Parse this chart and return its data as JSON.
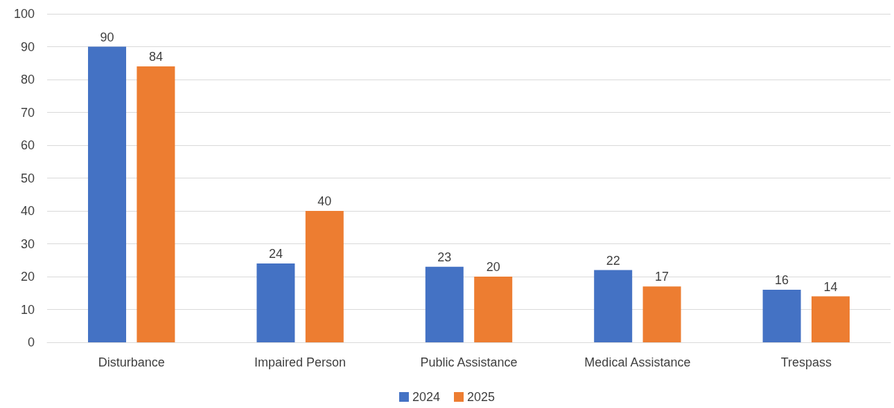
{
  "chart_data": {
    "type": "bar",
    "categories": [
      "Disturbance",
      "Impaired Person",
      "Public Assistance",
      "Medical Assistance",
      "Trespass"
    ],
    "series": [
      {
        "name": "2024",
        "color": "#4472c4",
        "values": [
          90,
          24,
          23,
          22,
          16
        ]
      },
      {
        "name": "2025",
        "color": "#ed7d31",
        "values": [
          84,
          40,
          20,
          17,
          14
        ]
      }
    ],
    "ylim": [
      0,
      100
    ],
    "yticks": [
      0,
      10,
      20,
      30,
      40,
      50,
      60,
      70,
      80,
      90,
      100
    ],
    "grid": "y",
    "legend": "bottom",
    "data_labels": true
  }
}
